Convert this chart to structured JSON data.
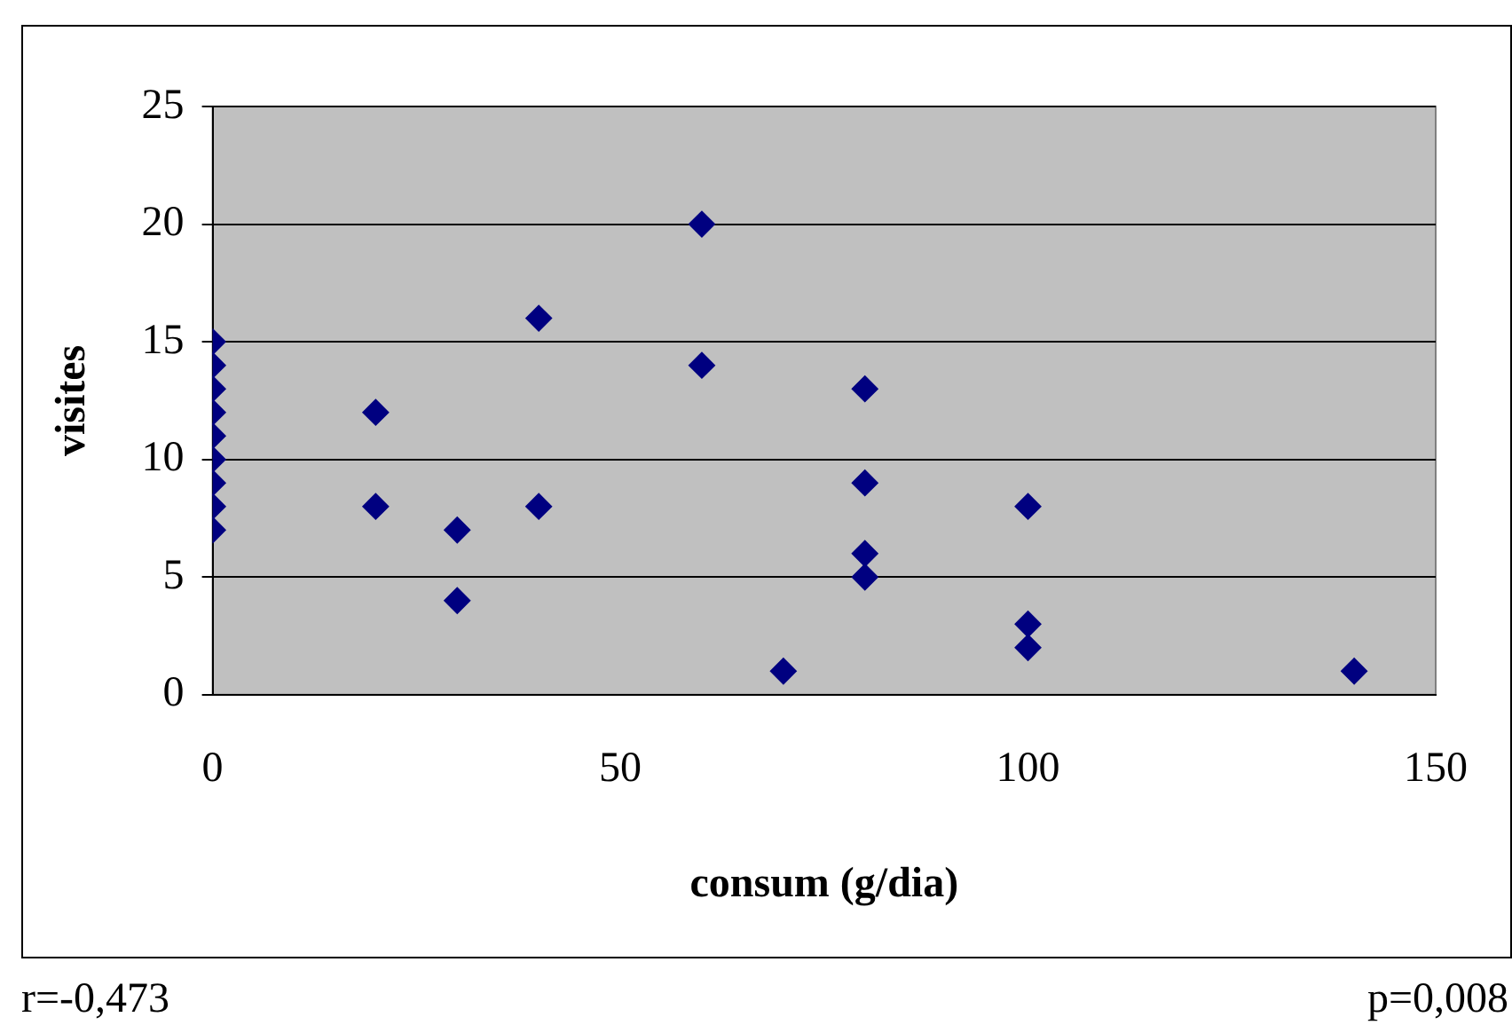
{
  "chart_data": {
    "type": "scatter",
    "xlabel": "consum (g/dia)",
    "ylabel": "visites",
    "series": [
      {
        "color": "#000080",
        "x": [
          0,
          0,
          0,
          0,
          0,
          0,
          0,
          0,
          0,
          20,
          20,
          30,
          30,
          40,
          40,
          60,
          60,
          70,
          80,
          80,
          80,
          80,
          100,
          100,
          100,
          140
        ],
        "values": [
          7,
          8,
          9,
          10,
          11,
          12,
          13,
          14,
          15,
          12,
          8,
          7,
          4,
          16,
          8,
          20,
          14,
          1,
          13,
          9,
          6,
          5,
          8,
          3,
          2,
          1
        ]
      }
    ],
    "xlim": [
      0,
      150
    ],
    "xticks": [
      0,
      50,
      100,
      150
    ],
    "ylim": [
      0,
      25
    ],
    "yticks": [
      0,
      5,
      10,
      15,
      20,
      25
    ],
    "grid": "y",
    "legend": false,
    "marker": "diamond",
    "annotations": [
      "r=-0,473",
      "p=0,008"
    ]
  }
}
